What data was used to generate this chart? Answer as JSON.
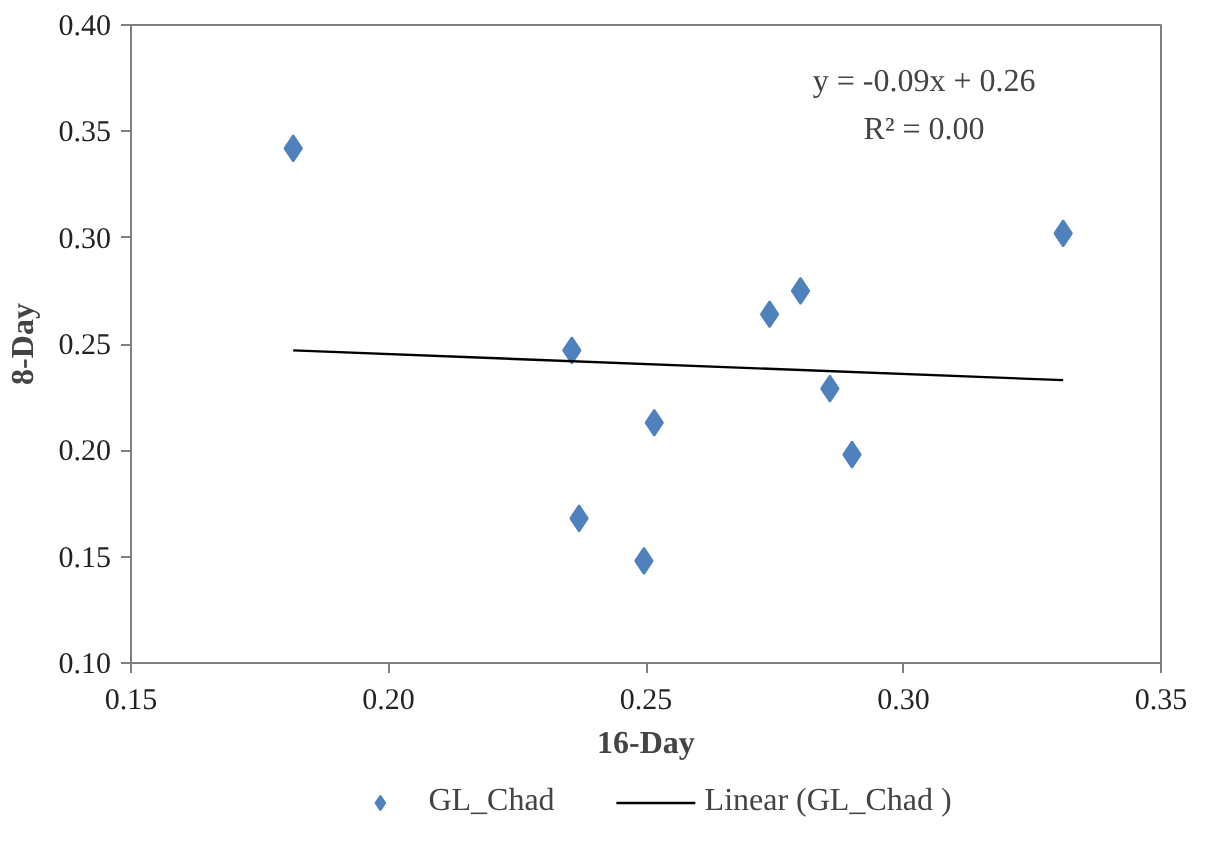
{
  "chart_data": {
    "type": "scatter",
    "xlabel": "16-Day",
    "ylabel": "8-Day",
    "xlim": [
      0.15,
      0.35
    ],
    "xticks": [
      {
        "value": 0.15,
        "label": "0.15"
      },
      {
        "value": 0.2,
        "label": "0.20"
      },
      {
        "value": 0.25,
        "label": "0.25"
      },
      {
        "value": 0.3,
        "label": "0.30"
      },
      {
        "value": 0.35,
        "label": "0.35"
      }
    ],
    "ylim": [
      0.1,
      0.4
    ],
    "yticks": [
      {
        "value": 0.1,
        "label": "0.10"
      },
      {
        "value": 0.15,
        "label": "0.15"
      },
      {
        "value": 0.2,
        "label": "0.20"
      },
      {
        "value": 0.25,
        "label": "0.25"
      },
      {
        "value": 0.3,
        "label": "0.30"
      },
      {
        "value": 0.35,
        "label": "0.35"
      },
      {
        "value": 0.4,
        "label": "0.40"
      }
    ],
    "grid": false,
    "legend": "bottom",
    "annotations": [
      "y = -0.09x + 0.26",
      "R² = 0.00"
    ],
    "series": [
      {
        "name": "GL_Chad",
        "marker": "diamond",
        "color": "#4f81bd",
        "x": [
          0.1815,
          0.2356,
          0.237,
          0.2496,
          0.2516,
          0.274,
          0.28,
          0.2857,
          0.29,
          0.331
        ],
        "values": [
          0.342,
          0.247,
          0.168,
          0.148,
          0.213,
          0.264,
          0.275,
          0.229,
          0.198,
          0.302
        ]
      },
      {
        "name": "Linear (GL_Chad )",
        "type": "line",
        "color": "#000000",
        "line_style": "solid",
        "x": [
          0.1815,
          0.331
        ],
        "values": [
          0.247,
          0.233
        ]
      }
    ]
  }
}
